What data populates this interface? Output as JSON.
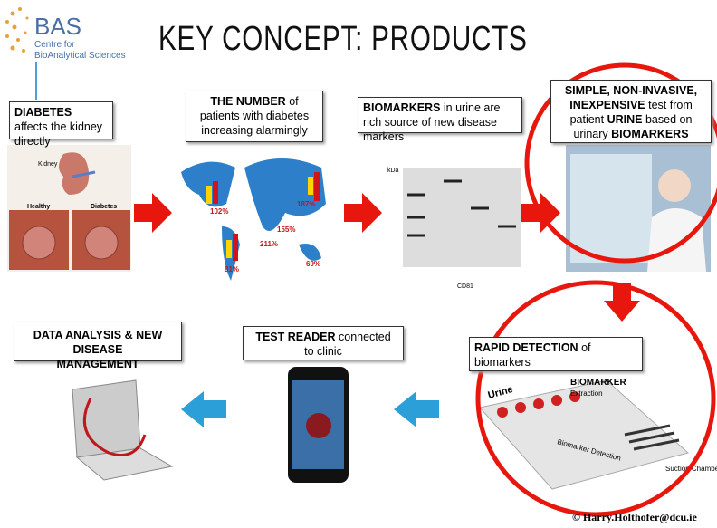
{
  "logo": {
    "name": "BAS",
    "line1": "Centre for",
    "line2": "BioAnalytical Sciences"
  },
  "title": "KEY CONCEPT: PRODUCTS",
  "boxes": [
    {
      "parts": [
        {
          "text": "DIABETES",
          "bold": true
        },
        {
          "text": " affects the kidney directly",
          "bold": false
        }
      ]
    },
    {
      "parts": [
        {
          "text": "THE NUMBER",
          "bold": true
        },
        {
          "text": " of patients with diabetes increasing alarmingly",
          "bold": false
        }
      ]
    },
    {
      "parts": [
        {
          "text": "BIOMARKERS",
          "bold": true
        },
        {
          "text": " in urine are rich source of new disease markers",
          "bold": false
        }
      ]
    },
    {
      "parts": [
        {
          "text": "SIMPLE, NON-INVASIVE, INEXPENSIVE",
          "bold": true
        },
        {
          "text": " test from patient ",
          "bold": false
        },
        {
          "text": "URINE",
          "bold": true
        },
        {
          "text": " based on urinary ",
          "bold": false
        },
        {
          "text": "BIOMARKERS",
          "bold": true
        }
      ]
    },
    {
      "parts": [
        {
          "text": "RAPID DETECTION",
          "bold": true
        },
        {
          "text": " of biomarkers",
          "bold": false
        }
      ]
    },
    {
      "parts": [
        {
          "text": "TEST READER",
          "bold": true
        },
        {
          "text": " connected  to clinic",
          "bold": false
        }
      ]
    },
    {
      "parts": [
        {
          "text": "DATA ANALYSIS & NEW DISEASE MANAGEMENT",
          "bold": true
        }
      ]
    }
  ],
  "kidney_image": {
    "organ": "Kidney",
    "healthy": "Healthy",
    "diabetes": "Diabetes"
  },
  "map_image": {
    "labels": [
      "102%",
      "211%",
      "155%",
      "187%",
      "81%",
      "69%"
    ]
  },
  "gel_image": {
    "unit": "kDa",
    "marker": "CD81"
  },
  "chip_image": {
    "input": "Urine",
    "target": "BIOMARKER",
    "step": "Extraction",
    "detection": "Biomarker Detection",
    "chambers": "Suction Chambers"
  },
  "footer": "© Harry.Holthofer@dcu.ie"
}
